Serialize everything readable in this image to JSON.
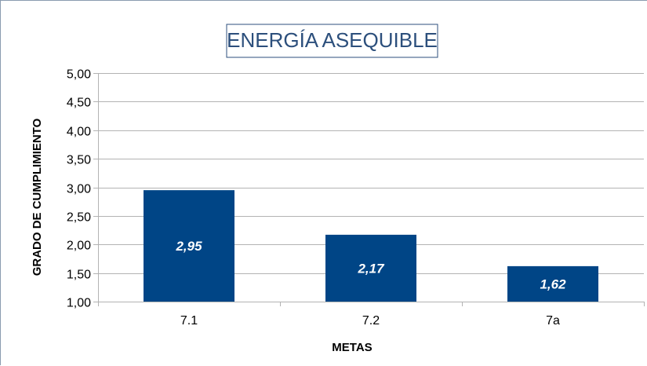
{
  "chart_data": {
    "type": "bar",
    "title": "ENERGÍA ASEQUIBLE",
    "xlabel": "METAS",
    "ylabel": "GRADO DE CUMPLIMIENTO",
    "categories": [
      "7.1",
      "7.2",
      "7a"
    ],
    "values": [
      2.95,
      2.17,
      1.62
    ],
    "data_labels": [
      "2,95",
      "2,17",
      "1,62"
    ],
    "ylim": [
      1,
      5
    ],
    "yticks": [
      "1,00",
      "1,50",
      "2,00",
      "2,50",
      "3,00",
      "3,50",
      "4,00",
      "4,50",
      "5,00"
    ],
    "ytick_values": [
      1.0,
      1.5,
      2.0,
      2.5,
      3.0,
      3.5,
      4.0,
      4.5,
      5.0
    ],
    "grid": true,
    "bar_color": "#004586",
    "title_color": "#2c4f7c",
    "grid_color": "#b3b3b3"
  }
}
